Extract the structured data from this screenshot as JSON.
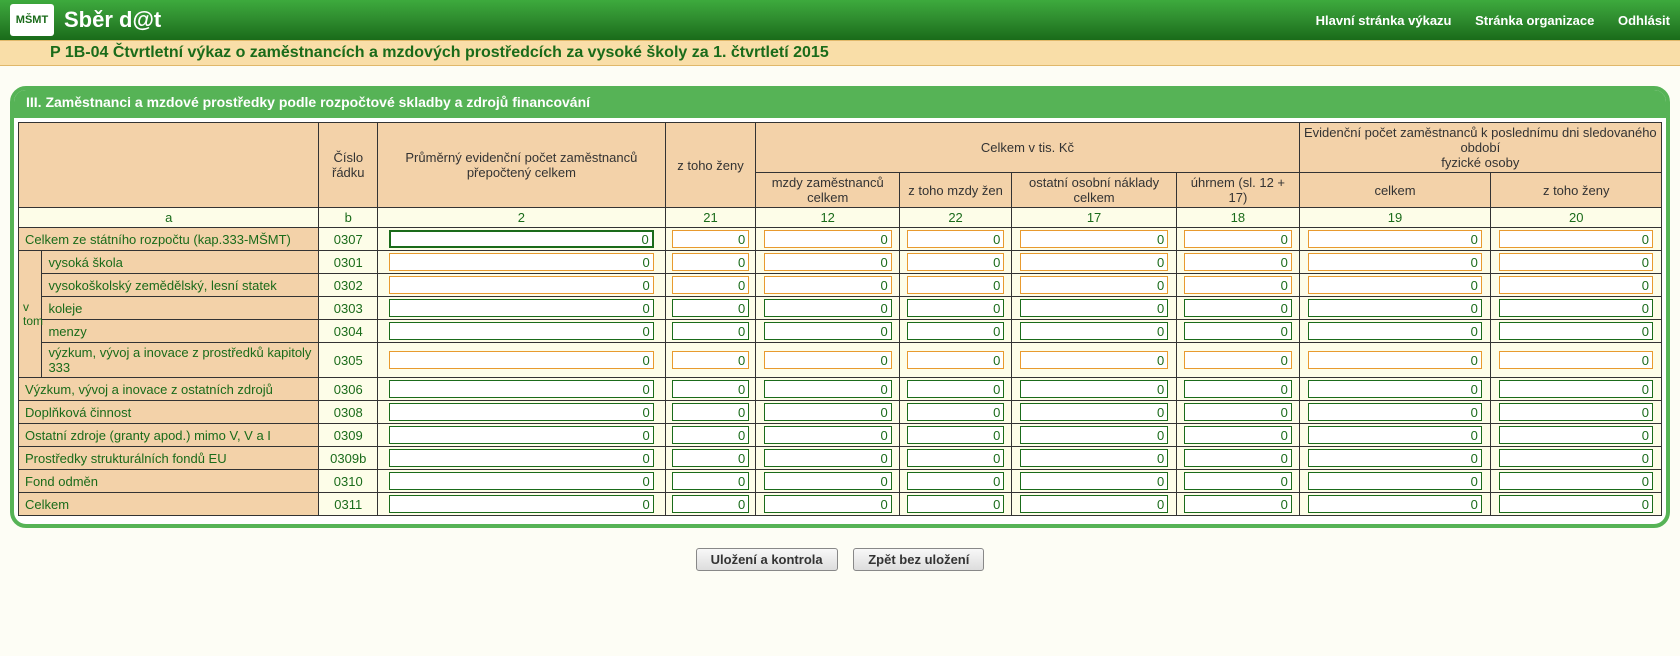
{
  "app": {
    "logo_text": "MŠMT",
    "title": "Sběr d@t"
  },
  "nav": {
    "home": "Hlavní stránka výkazu",
    "org": "Stránka organizace",
    "logout": "Odhlásit"
  },
  "page_title": "P 1B-04 Čtvrtletní výkaz o zaměstnancích a mzdových prostředcích za vysoké školy za 1. čtvrtletí 2015",
  "section_title": "III. Zaměstnanci a mzdové prostředky podle rozpočtové skladby a zdrojů financování",
  "columns": {
    "a_label": "a",
    "b_label": "b",
    "cislo_radku": "Číslo řádku",
    "col2_hdr": "Průměrný evidenční počet zaměstnanců přepočtený celkem",
    "col21_hdr": "z toho ženy",
    "celkem_group": "Celkem v tis. Kč",
    "col12_hdr": "mzdy zaměstnanců celkem",
    "col22_hdr": "z toho mzdy žen",
    "col17_hdr": "ostatní osobní náklady celkem",
    "col18_hdr": "úhrnem (sl. 12 + 17)",
    "evid_group": "Evidenční počet zaměstnanců k poslednímu dni sledovaného období\nfyzické osoby",
    "col19_hdr": "celkem",
    "col20_hdr": "z toho ženy",
    "num2": "2",
    "num21": "21",
    "num12": "12",
    "num22": "22",
    "num17": "17",
    "num18": "18",
    "num19": "19",
    "num20": "20"
  },
  "vtom_label": "v tom",
  "rows": [
    {
      "label": "Celkem ze státního rozpočtu (kap.333-MŠMT)",
      "num": "0307",
      "vtom": false,
      "style": "orange"
    },
    {
      "label": "vysoká škola",
      "num": "0301",
      "vtom": true,
      "style": "orange"
    },
    {
      "label": "vysokoškolský zemědělský, lesní statek",
      "num": "0302",
      "vtom": true,
      "style": "orange"
    },
    {
      "label": "koleje",
      "num": "0303",
      "vtom": true,
      "style": "green"
    },
    {
      "label": "menzy",
      "num": "0304",
      "vtom": true,
      "style": "green"
    },
    {
      "label": "výzkum, vývoj a inovace z prostředků kapitoly 333",
      "num": "0305",
      "vtom": true,
      "style": "orange"
    },
    {
      "label": "Výzkum, vývoj a inovace z ostatních zdrojů",
      "num": "0306",
      "vtom": false,
      "style": "green"
    },
    {
      "label": "Doplňková činnost",
      "num": "0308",
      "vtom": false,
      "style": "green"
    },
    {
      "label": "Ostatní zdroje (granty apod.) mimo V, V a I",
      "num": "0309",
      "vtom": false,
      "style": "green"
    },
    {
      "label": "Prostředky strukturálních fondů EU",
      "num": "0309b",
      "vtom": false,
      "style": "green"
    },
    {
      "label": "Fond odměn",
      "num": "0310",
      "vtom": false,
      "style": "green"
    },
    {
      "label": "Celkem",
      "num": "0311",
      "vtom": false,
      "style": "green"
    }
  ],
  "default_value": "0",
  "buttons": {
    "save": "Uložení a kontrola",
    "cancel": "Zpět bez uložení"
  },
  "colors": {
    "green_primary": "#1a6b1a",
    "green_panel": "#56b356",
    "header_tan": "#f3d2a9",
    "cell_cream": "#fdfde8",
    "title_band": "#f9dea8",
    "input_border_orange": "#e89a2e",
    "input_border_green": "#1a6b1a"
  }
}
